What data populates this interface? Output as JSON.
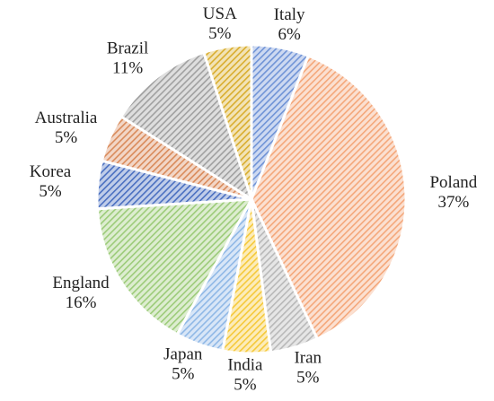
{
  "chart_data": {
    "type": "pie",
    "categories": [
      "Italy",
      "Poland",
      "Iran",
      "India",
      "Japan",
      "England",
      "Korea",
      "Australia",
      "Brazil",
      "USA"
    ],
    "values": [
      6,
      37,
      5,
      5,
      5,
      16,
      5,
      5,
      11,
      5
    ],
    "value_labels": [
      "6%",
      "37%",
      "5%",
      "5%",
      "5%",
      "16%",
      "5%",
      "5%",
      "11%",
      "5%"
    ],
    "colors": [
      "#6f93d6",
      "#f4a77a",
      "#b8b8b8",
      "#f5c93a",
      "#8fb8e6",
      "#9ccb79",
      "#4a6fc0",
      "#d98a5a",
      "#a0a0a0",
      "#d9ad2e"
    ]
  }
}
